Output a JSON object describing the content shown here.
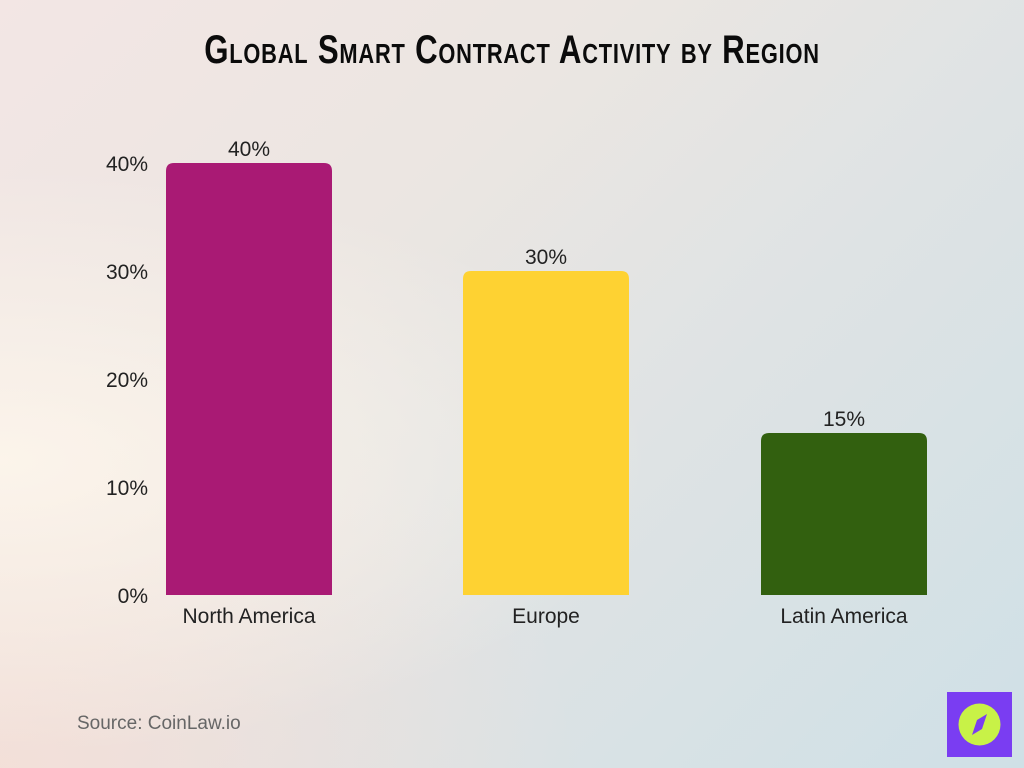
{
  "chart_data": {
    "type": "bar",
    "title": "Global Smart Contract Activity by Region",
    "categories": [
      "North America",
      "Europe",
      "Latin America"
    ],
    "values": [
      40,
      30,
      15
    ],
    "data_labels": [
      "40%",
      "30%",
      "15%"
    ],
    "colors": [
      "#a91a74",
      "#fed232",
      "#32600f"
    ],
    "ylim": [
      0,
      40
    ],
    "yticks": [
      "0%",
      "10%",
      "20%",
      "30%",
      "40%"
    ],
    "grid": false,
    "xlabel": "",
    "ylabel": ""
  },
  "source": "Source: CoinLaw.io",
  "logo": {
    "icon": "compass-icon",
    "bg": "#7a3df2",
    "fg": "#c8f247"
  }
}
